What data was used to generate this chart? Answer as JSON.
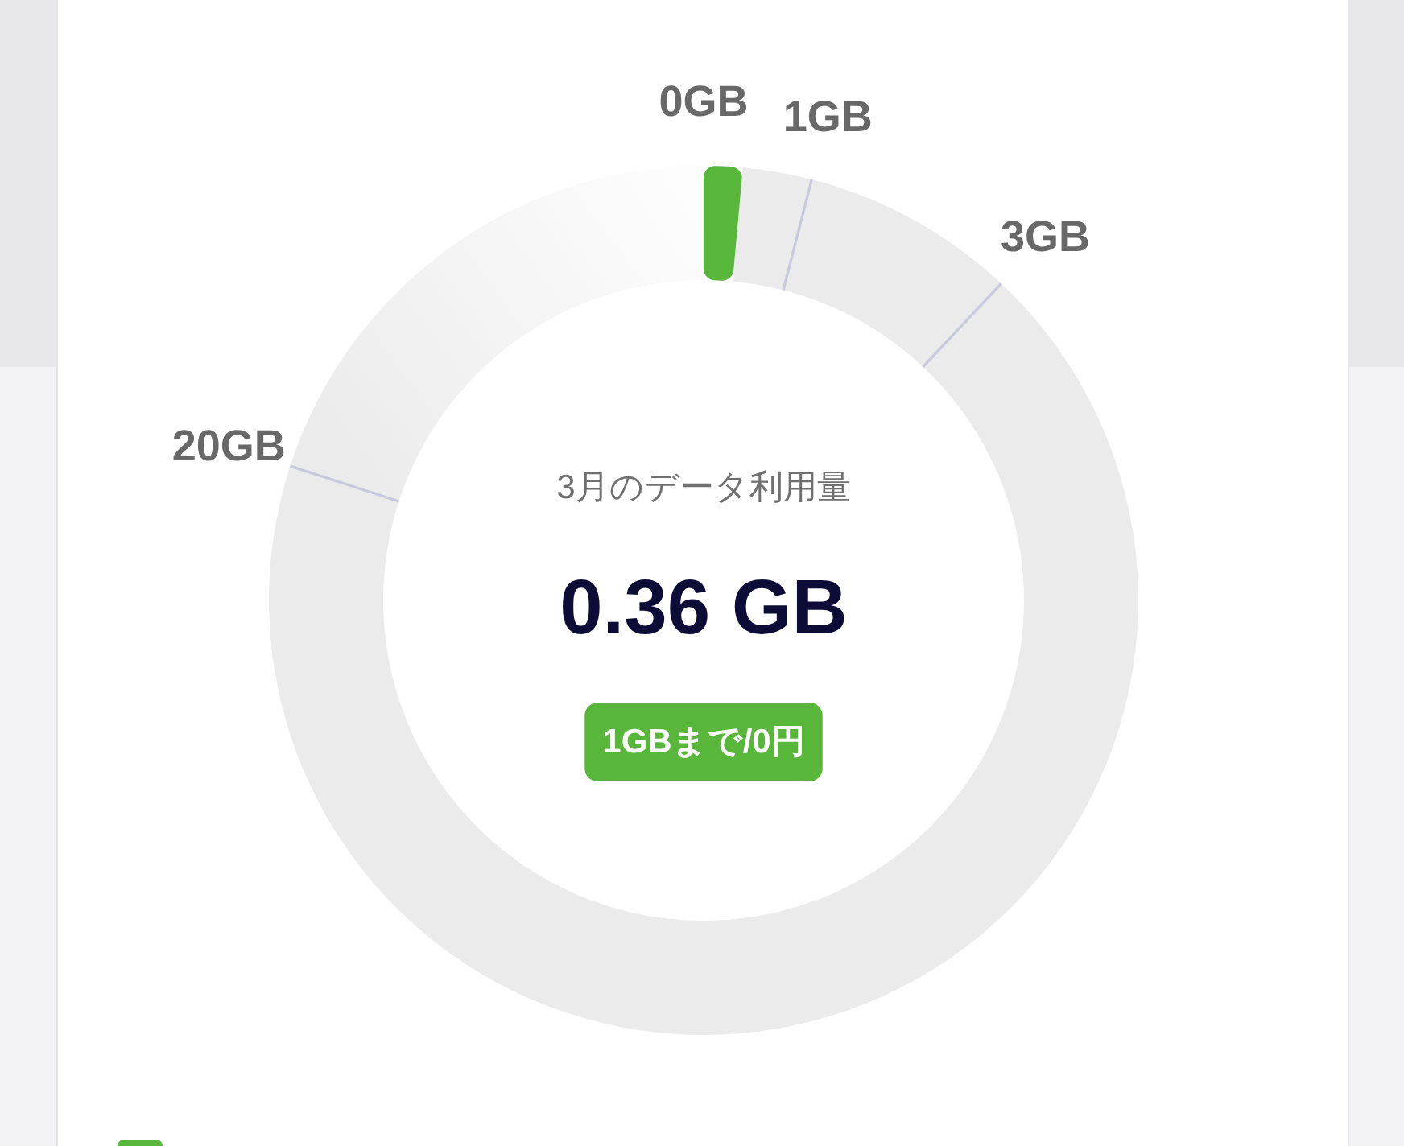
{
  "chart_data": {
    "type": "donut",
    "title": "3月のデータ利用量",
    "categories": [
      "0GB",
      null,
      "1GB",
      "3GB",
      "20GB"
    ],
    "values": [
      1.44,
      2.56,
      8,
      68,
      20
    ],
    "colors": [
      "#58b63a",
      "#ebebeb",
      "#ebebeb",
      "#ebebeb",
      "#fdfdfd"
    ],
    "annotations": [
      "0.36 GB",
      "1GBまで/0円"
    ]
  }
}
